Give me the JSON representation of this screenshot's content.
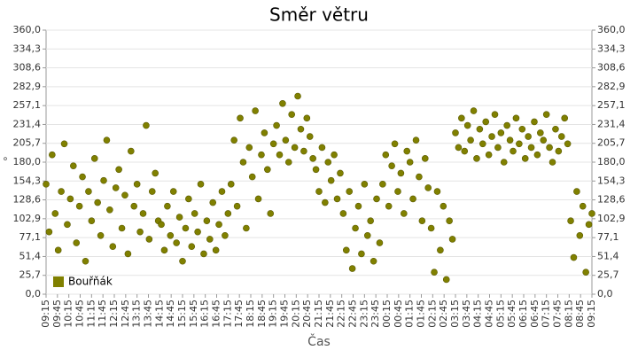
{
  "chart_data": {
    "type": "scatter",
    "title": "Směr větru",
    "x_label": "Čas",
    "y_label": "°",
    "xlim": [
      0,
      1440
    ],
    "xticks": [
      {
        "value": 0,
        "label": "09:15"
      },
      {
        "value": 30,
        "label": "09:45"
      },
      {
        "value": 60,
        "label": "10:15"
      },
      {
        "value": 90,
        "label": "10:45"
      },
      {
        "value": 120,
        "label": "11:15"
      },
      {
        "value": 150,
        "label": "11:45"
      },
      {
        "value": 180,
        "label": "12:15"
      },
      {
        "value": 210,
        "label": "12:45"
      },
      {
        "value": 240,
        "label": "13:15"
      },
      {
        "value": 270,
        "label": "13:45"
      },
      {
        "value": 300,
        "label": "14:15"
      },
      {
        "value": 330,
        "label": "14:45"
      },
      {
        "value": 360,
        "label": "15:15"
      },
      {
        "value": 390,
        "label": "15:45"
      },
      {
        "value": 420,
        "label": "16:15"
      },
      {
        "value": 450,
        "label": "16:45"
      },
      {
        "value": 480,
        "label": "17:15"
      },
      {
        "value": 510,
        "label": "17:45"
      },
      {
        "value": 540,
        "label": "18:15"
      },
      {
        "value": 570,
        "label": "18:45"
      },
      {
        "value": 600,
        "label": "19:15"
      },
      {
        "value": 630,
        "label": "19:45"
      },
      {
        "value": 660,
        "label": "20:15"
      },
      {
        "value": 690,
        "label": "20:45"
      },
      {
        "value": 720,
        "label": "21:15"
      },
      {
        "value": 750,
        "label": "21:45"
      },
      {
        "value": 780,
        "label": "22:15"
      },
      {
        "value": 810,
        "label": "22:45"
      },
      {
        "value": 840,
        "label": "23:15"
      },
      {
        "value": 870,
        "label": "23:45"
      },
      {
        "value": 900,
        "label": "00:15"
      },
      {
        "value": 930,
        "label": "00:45"
      },
      {
        "value": 960,
        "label": "01:15"
      },
      {
        "value": 990,
        "label": "01:45"
      },
      {
        "value": 1020,
        "label": "02:15"
      },
      {
        "value": 1050,
        "label": "02:45"
      },
      {
        "value": 1080,
        "label": "03:15"
      },
      {
        "value": 1110,
        "label": "03:45"
      },
      {
        "value": 1140,
        "label": "04:15"
      },
      {
        "value": 1170,
        "label": "04:45"
      },
      {
        "value": 1200,
        "label": "05:15"
      },
      {
        "value": 1230,
        "label": "05:45"
      },
      {
        "value": 1260,
        "label": "06:15"
      },
      {
        "value": 1290,
        "label": "06:45"
      },
      {
        "value": 1320,
        "label": "07:15"
      },
      {
        "value": 1350,
        "label": "07:45"
      },
      {
        "value": 1380,
        "label": "08:15"
      },
      {
        "value": 1410,
        "label": "08:45"
      },
      {
        "value": 1440,
        "label": "09:15"
      }
    ],
    "ylim": [
      0,
      360
    ],
    "yticks": [
      {
        "value": 0,
        "label": "0,0"
      },
      {
        "value": 25.7,
        "label": "25,7"
      },
      {
        "value": 51.4,
        "label": "51,4"
      },
      {
        "value": 77.1,
        "label": "77,1"
      },
      {
        "value": 102.9,
        "label": "102,9"
      },
      {
        "value": 128.6,
        "label": "128,6"
      },
      {
        "value": 154.3,
        "label": "154,3"
      },
      {
        "value": 180,
        "label": "180,0"
      },
      {
        "value": 205.7,
        "label": "205,7"
      },
      {
        "value": 231.4,
        "label": "231,4"
      },
      {
        "value": 257.1,
        "label": "257,1"
      },
      {
        "value": 282.9,
        "label": "282,9"
      },
      {
        "value": 308.6,
        "label": "308,6"
      },
      {
        "value": 334.3,
        "label": "334,3"
      },
      {
        "value": 360,
        "label": "360,0"
      }
    ],
    "grid": true,
    "legend": "lower left",
    "series": [
      {
        "name": "Bouřňák",
        "color": "#808000",
        "x": [
          0,
          8,
          16,
          24,
          32,
          40,
          48,
          56,
          64,
          72,
          80,
          88,
          96,
          104,
          112,
          120,
          128,
          136,
          144,
          152,
          160,
          168,
          176,
          184,
          192,
          200,
          208,
          216,
          224,
          232,
          240,
          248,
          256,
          264,
          272,
          280,
          288,
          296,
          304,
          312,
          320,
          328,
          336,
          344,
          352,
          360,
          368,
          376,
          384,
          392,
          400,
          408,
          416,
          424,
          432,
          440,
          448,
          456,
          464,
          472,
          480,
          488,
          496,
          504,
          512,
          520,
          528,
          536,
          544,
          552,
          560,
          568,
          576,
          584,
          592,
          600,
          608,
          616,
          624,
          632,
          640,
          648,
          656,
          664,
          672,
          680,
          688,
          696,
          704,
          712,
          720,
          728,
          736,
          744,
          752,
          760,
          768,
          776,
          784,
          792,
          800,
          808,
          816,
          824,
          832,
          840,
          848,
          856,
          864,
          872,
          880,
          888,
          896,
          904,
          912,
          920,
          928,
          936,
          944,
          952,
          960,
          968,
          976,
          984,
          992,
          1000,
          1008,
          1016,
          1024,
          1032,
          1040,
          1048,
          1056,
          1064,
          1072,
          1080,
          1088,
          1096,
          1104,
          1112,
          1120,
          1128,
          1136,
          1144,
          1152,
          1160,
          1168,
          1176,
          1184,
          1192,
          1200,
          1208,
          1216,
          1224,
          1232,
          1240,
          1248,
          1256,
          1264,
          1272,
          1280,
          1288,
          1296,
          1304,
          1312,
          1320,
          1328,
          1336,
          1344,
          1352,
          1360,
          1368,
          1376,
          1384,
          1392,
          1400,
          1408,
          1416,
          1424,
          1432,
          1440
        ],
        "values": [
          150,
          85,
          190,
          110,
          60,
          140,
          205,
          95,
          130,
          175,
          70,
          120,
          160,
          45,
          140,
          100,
          185,
          125,
          80,
          155,
          210,
          115,
          65,
          145,
          170,
          90,
          135,
          55,
          195,
          120,
          150,
          85,
          110,
          230,
          75,
          140,
          165,
          100,
          95,
          60,
          120,
          80,
          140,
          70,
          105,
          45,
          90,
          130,
          65,
          110,
          85,
          150,
          55,
          100,
          75,
          125,
          60,
          95,
          140,
          80,
          110,
          150,
          210,
          120,
          240,
          180,
          90,
          200,
          160,
          250,
          130,
          190,
          220,
          170,
          110,
          205,
          230,
          190,
          260,
          210,
          180,
          245,
          200,
          270,
          225,
          195,
          240,
          215,
          185,
          170,
          140,
          200,
          125,
          180,
          155,
          190,
          130,
          165,
          110,
          60,
          140,
          35,
          90,
          120,
          55,
          150,
          80,
          100,
          45,
          130,
          70,
          150,
          190,
          120,
          175,
          205,
          140,
          165,
          110,
          195,
          180,
          130,
          210,
          160,
          100,
          185,
          145,
          90,
          30,
          140,
          60,
          120,
          20,
          100,
          75,
          220,
          200,
          240,
          195,
          230,
          210,
          250,
          185,
          225,
          205,
          235,
          190,
          215,
          245,
          200,
          220,
          180,
          230,
          210,
          195,
          240,
          205,
          225,
          185,
          215,
          200,
          235,
          190,
          220,
          210,
          245,
          200,
          180,
          225,
          195,
          215,
          240,
          205,
          100,
          50,
          140,
          80,
          120,
          30,
          95,
          110
        ]
      }
    ]
  }
}
